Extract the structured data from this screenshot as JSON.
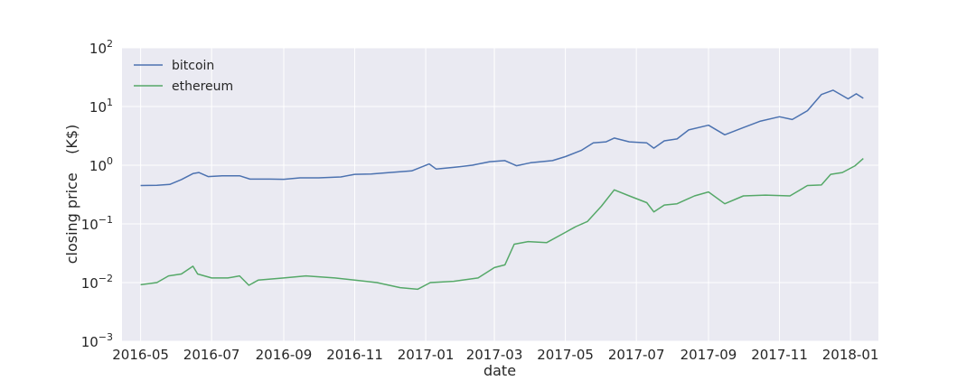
{
  "chart_data": {
    "type": "line",
    "xlabel": "date",
    "ylabel": "closing price    (K$)",
    "yscale": "log",
    "ylim": [
      0.001,
      100
    ],
    "xlim": [
      "2016-04-15",
      "2018-01-25"
    ],
    "grid": true,
    "legend_position": "top-left",
    "x_ticks": [
      "2016-05",
      "2016-07",
      "2016-09",
      "2016-11",
      "2017-01",
      "2017-03",
      "2017-05",
      "2017-07",
      "2017-09",
      "2017-11",
      "2018-01"
    ],
    "y_ticks": [
      {
        "value": 0.001,
        "base": "10",
        "exp": "−3"
      },
      {
        "value": 0.01,
        "base": "10",
        "exp": "−2"
      },
      {
        "value": 0.1,
        "base": "10",
        "exp": "−1"
      },
      {
        "value": 1,
        "base": "10",
        "exp": "0"
      },
      {
        "value": 10,
        "base": "10",
        "exp": "1"
      },
      {
        "value": 100,
        "base": "10",
        "exp": "2"
      }
    ],
    "series": [
      {
        "name": "bitcoin",
        "color": "#4c72b0",
        "points": [
          [
            "2016-05-01",
            0.45
          ],
          [
            "2016-05-15",
            0.455
          ],
          [
            "2016-05-26",
            0.47
          ],
          [
            "2016-06-05",
            0.57
          ],
          [
            "2016-06-15",
            0.72
          ],
          [
            "2016-06-20",
            0.75
          ],
          [
            "2016-06-28",
            0.64
          ],
          [
            "2016-07-10",
            0.66
          ],
          [
            "2016-07-25",
            0.66
          ],
          [
            "2016-08-03",
            0.58
          ],
          [
            "2016-08-20",
            0.58
          ],
          [
            "2016-09-01",
            0.575
          ],
          [
            "2016-09-15",
            0.61
          ],
          [
            "2016-10-01",
            0.61
          ],
          [
            "2016-10-20",
            0.63
          ],
          [
            "2016-11-01",
            0.7
          ],
          [
            "2016-11-15",
            0.71
          ],
          [
            "2016-12-01",
            0.75
          ],
          [
            "2016-12-20",
            0.8
          ],
          [
            "2017-01-04",
            1.05
          ],
          [
            "2017-01-10",
            0.86
          ],
          [
            "2017-01-25",
            0.92
          ],
          [
            "2017-02-10",
            1.0
          ],
          [
            "2017-02-25",
            1.15
          ],
          [
            "2017-03-10",
            1.2
          ],
          [
            "2017-03-20",
            0.98
          ],
          [
            "2017-04-01",
            1.1
          ],
          [
            "2017-04-20",
            1.2
          ],
          [
            "2017-05-01",
            1.4
          ],
          [
            "2017-05-15",
            1.8
          ],
          [
            "2017-05-25",
            2.4
          ],
          [
            "2017-06-05",
            2.5
          ],
          [
            "2017-06-12",
            2.9
          ],
          [
            "2017-06-25",
            2.5
          ],
          [
            "2017-07-10",
            2.4
          ],
          [
            "2017-07-16",
            1.95
          ],
          [
            "2017-07-25",
            2.6
          ],
          [
            "2017-08-05",
            2.8
          ],
          [
            "2017-08-15",
            4.0
          ],
          [
            "2017-09-01",
            4.8
          ],
          [
            "2017-09-15",
            3.3
          ],
          [
            "2017-09-30",
            4.3
          ],
          [
            "2017-10-15",
            5.6
          ],
          [
            "2017-11-01",
            6.7
          ],
          [
            "2017-11-12",
            6.0
          ],
          [
            "2017-11-25",
            8.5
          ],
          [
            "2017-12-07",
            16.0
          ],
          [
            "2017-12-17",
            19.0
          ],
          [
            "2017-12-30",
            13.5
          ],
          [
            "2018-01-06",
            16.5
          ],
          [
            "2018-01-12",
            13.8
          ]
        ]
      },
      {
        "name": "ethereum",
        "color": "#55a868",
        "points": [
          [
            "2016-05-01",
            0.0092
          ],
          [
            "2016-05-15",
            0.01
          ],
          [
            "2016-05-25",
            0.013
          ],
          [
            "2016-06-05",
            0.014
          ],
          [
            "2016-06-15",
            0.019
          ],
          [
            "2016-06-19",
            0.014
          ],
          [
            "2016-07-01",
            0.012
          ],
          [
            "2016-07-15",
            0.012
          ],
          [
            "2016-07-25",
            0.013
          ],
          [
            "2016-08-02",
            0.009
          ],
          [
            "2016-08-10",
            0.011
          ],
          [
            "2016-09-01",
            0.012
          ],
          [
            "2016-09-20",
            0.013
          ],
          [
            "2016-10-15",
            0.012
          ],
          [
            "2016-11-01",
            0.011
          ],
          [
            "2016-11-20",
            0.01
          ],
          [
            "2016-12-10",
            0.0082
          ],
          [
            "2016-12-25",
            0.0077
          ],
          [
            "2017-01-05",
            0.01
          ],
          [
            "2017-01-25",
            0.0105
          ],
          [
            "2017-02-15",
            0.012
          ],
          [
            "2017-03-01",
            0.018
          ],
          [
            "2017-03-10",
            0.02
          ],
          [
            "2017-03-18",
            0.045
          ],
          [
            "2017-03-30",
            0.05
          ],
          [
            "2017-04-15",
            0.048
          ],
          [
            "2017-04-30",
            0.07
          ],
          [
            "2017-05-10",
            0.09
          ],
          [
            "2017-05-20",
            0.11
          ],
          [
            "2017-06-01",
            0.2
          ],
          [
            "2017-06-12",
            0.38
          ],
          [
            "2017-06-25",
            0.3
          ],
          [
            "2017-07-10",
            0.23
          ],
          [
            "2017-07-16",
            0.16
          ],
          [
            "2017-07-25",
            0.21
          ],
          [
            "2017-08-05",
            0.22
          ],
          [
            "2017-08-20",
            0.3
          ],
          [
            "2017-09-01",
            0.35
          ],
          [
            "2017-09-15",
            0.22
          ],
          [
            "2017-10-01",
            0.3
          ],
          [
            "2017-10-20",
            0.31
          ],
          [
            "2017-11-10",
            0.3
          ],
          [
            "2017-11-25",
            0.45
          ],
          [
            "2017-12-07",
            0.46
          ],
          [
            "2017-12-15",
            0.7
          ],
          [
            "2017-12-25",
            0.75
          ],
          [
            "2018-01-05",
            0.98
          ],
          [
            "2018-01-12",
            1.3
          ]
        ]
      }
    ]
  }
}
